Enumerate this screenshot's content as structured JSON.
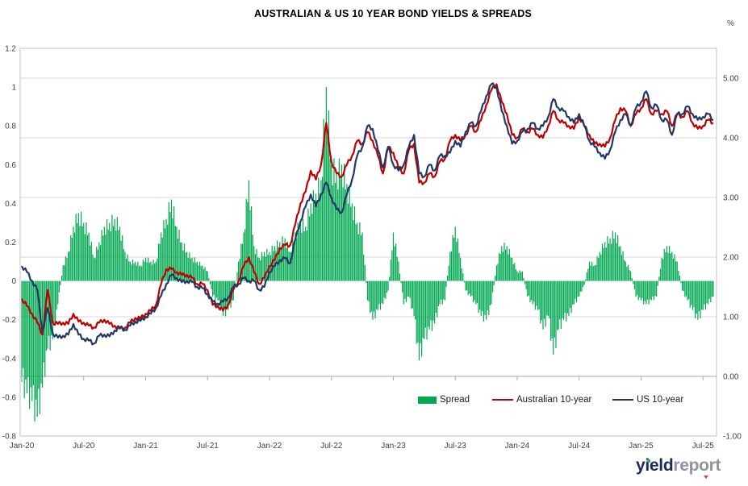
{
  "title": "AUSTRALIAN & US 10 YEAR BOND YIELDS & SPREADS",
  "percent_label": "%",
  "watermark": {
    "yield": "yield",
    "report": "report",
    "yield_color": "#1C2B59",
    "report_color": "#8F959E",
    "dot_color": "#3DAE4A",
    "triangle_color": "#E03A3E"
  },
  "legend": [
    {
      "label": "Spread",
      "color": "#00A850",
      "swatch": "bar"
    },
    {
      "label": "Australian 10-year",
      "color": "#C00000",
      "swatch": "line"
    },
    {
      "label": "US 10-year",
      "color": "#1F3864",
      "swatch": "line"
    }
  ],
  "chart_data": {
    "type": "combo (bar + line)",
    "title": "AUSTRALIAN & US 10 YEAR BOND YIELDS & SPREADS",
    "x_start": "2020-01",
    "x_end": "2025-08",
    "sampling": "semi-monthly (2 samples per month), values in percent",
    "x_tick_labels": [
      "Jan-20",
      "Jul-20",
      "Jan-21",
      "Jul-21",
      "Jan-22",
      "Jul-22",
      "Jan-23",
      "Jul-23",
      "Jan-24",
      "Jul-24",
      "Jan-25",
      "Jul-25"
    ],
    "grid": true,
    "legend_position": "bottom-inside",
    "left_axis": {
      "series_on_axis": "Spread (Australian minus US, percentage points)",
      "min": -0.8,
      "max": 1.2,
      "tick_values": [
        1.2,
        1.0,
        0.8,
        0.6,
        0.4,
        0.2,
        0.0,
        -0.2,
        -0.4,
        -0.6,
        -0.8
      ],
      "tick_labels": [
        "1.2",
        "1",
        "0.8",
        "0.6",
        "0.4",
        "0.2",
        "0",
        "-0.2",
        "-0.4",
        "-0.6",
        "-0.8"
      ]
    },
    "right_axis": {
      "series_on_axis": "Bond yields (%)",
      "unit": "%",
      "min": -1.0,
      "max": 5.5,
      "tick_values": [
        5,
        4,
        3,
        2,
        1,
        0,
        -1
      ],
      "tick_labels": [
        "5.00",
        "4.00",
        "3.00",
        "2.00",
        "1.00",
        "0.00",
        "-1.00"
      ]
    },
    "series": [
      {
        "name": "Spread",
        "type": "bar",
        "axis": "left",
        "color": "#00A850",
        "values": [
          -0.52,
          -0.58,
          -0.62,
          -0.7,
          -0.55,
          -0.35,
          -0.3,
          -0.12,
          0.08,
          0.15,
          0.28,
          0.35,
          0.3,
          0.25,
          0.12,
          0.2,
          0.28,
          0.3,
          0.32,
          0.28,
          0.15,
          0.1,
          0.1,
          0.08,
          0.12,
          0.1,
          0.1,
          0.25,
          0.32,
          0.42,
          0.28,
          0.2,
          0.15,
          0.12,
          0.1,
          0.08,
          0.05,
          -0.08,
          -0.1,
          -0.18,
          -0.15,
          -0.1,
          0.1,
          0.25,
          0.52,
          0.18,
          0.12,
          0.15,
          0.15,
          0.18,
          0.2,
          0.22,
          0.15,
          0.25,
          0.3,
          0.28,
          0.4,
          0.45,
          0.52,
          1.0,
          0.6,
          0.55,
          0.6,
          0.5,
          0.4,
          0.3,
          0.25,
          -0.1,
          -0.2,
          -0.15,
          -0.12,
          -0.05,
          0.25,
          0.1,
          -0.12,
          -0.08,
          -0.18,
          -0.41,
          -0.3,
          -0.25,
          -0.22,
          -0.12,
          -0.1,
          0.15,
          0.28,
          0.12,
          -0.05,
          -0.08,
          -0.12,
          -0.18,
          -0.2,
          -0.12,
          0.08,
          0.18,
          0.18,
          0.12,
          0.05,
          0.05,
          -0.08,
          -0.12,
          -0.15,
          -0.25,
          -0.18,
          -0.38,
          -0.25,
          -0.2,
          -0.18,
          -0.12,
          -0.08,
          -0.02,
          0.1,
          0.08,
          0.15,
          0.2,
          0.22,
          0.25,
          0.18,
          0.1,
          0.05,
          -0.08,
          -0.1,
          -0.12,
          -0.1,
          -0.08,
          0.12,
          0.18,
          0.15,
          0.1,
          -0.05,
          -0.1,
          -0.15,
          -0.2,
          -0.15,
          -0.12,
          -0.08
        ]
      },
      {
        "name": "Australian 10-year",
        "type": "line",
        "axis": "right",
        "color": "#C00000",
        "values": [
          1.3,
          1.18,
          1.05,
          0.9,
          0.7,
          1.45,
          0.9,
          0.88,
          0.9,
          0.88,
          1.05,
          0.92,
          0.9,
          0.85,
          0.82,
          0.9,
          0.95,
          0.88,
          0.85,
          0.8,
          0.82,
          0.9,
          0.98,
          0.97,
          1.05,
          1.1,
          1.2,
          1.55,
          1.8,
          1.8,
          1.75,
          1.7,
          1.7,
          1.65,
          1.55,
          1.55,
          1.45,
          1.2,
          1.18,
          1.1,
          1.2,
          1.45,
          1.6,
          1.85,
          2.0,
          1.75,
          1.55,
          1.65,
          1.85,
          1.95,
          2.15,
          2.2,
          2.2,
          2.55,
          2.9,
          3.1,
          3.45,
          3.3,
          3.55,
          4.25,
          3.6,
          3.4,
          3.35,
          3.55,
          3.7,
          3.95,
          3.9,
          4.1,
          3.95,
          3.7,
          3.4,
          3.85,
          3.75,
          3.5,
          3.4,
          3.8,
          3.9,
          3.25,
          3.25,
          3.4,
          3.35,
          3.6,
          3.65,
          3.95,
          4.05,
          3.95,
          4.05,
          4.2,
          4.1,
          4.3,
          4.55,
          4.8,
          4.9,
          4.6,
          4.4,
          4.05,
          4.0,
          4.15,
          4.1,
          4.15,
          4.05,
          4.0,
          4.2,
          4.45,
          4.3,
          4.25,
          4.2,
          4.15,
          4.35,
          4.2,
          4.05,
          3.9,
          3.9,
          3.85,
          4.0,
          4.3,
          4.5,
          4.45,
          4.2,
          4.4,
          4.5,
          4.65,
          4.4,
          4.45,
          4.4,
          4.45,
          4.2,
          4.4,
          4.35,
          4.45,
          4.25,
          4.15,
          4.2,
          4.3,
          4.25
        ]
      },
      {
        "name": "US 10-year",
        "type": "line",
        "axis": "right",
        "color": "#1F3864",
        "values": [
          1.85,
          1.75,
          1.6,
          1.45,
          0.75,
          1.15,
          0.72,
          0.65,
          0.68,
          0.7,
          0.88,
          0.7,
          0.63,
          0.6,
          0.55,
          0.68,
          0.7,
          0.67,
          0.77,
          0.82,
          0.78,
          0.85,
          0.92,
          0.93,
          1.0,
          1.05,
          1.15,
          1.35,
          1.55,
          1.7,
          1.65,
          1.58,
          1.6,
          1.58,
          1.5,
          1.48,
          1.38,
          1.25,
          1.22,
          1.25,
          1.32,
          1.5,
          1.55,
          1.65,
          1.6,
          1.6,
          1.45,
          1.5,
          1.75,
          1.85,
          1.95,
          1.98,
          1.9,
          2.3,
          2.6,
          2.85,
          3.05,
          2.85,
          3.05,
          3.25,
          3.0,
          2.8,
          2.75,
          3.05,
          3.3,
          3.7,
          3.85,
          4.2,
          4.15,
          3.8,
          3.5,
          3.85,
          3.55,
          3.45,
          3.55,
          3.85,
          4.05,
          3.4,
          3.35,
          3.55,
          3.45,
          3.7,
          3.7,
          3.75,
          3.95,
          3.85,
          4.1,
          4.25,
          4.2,
          4.45,
          4.7,
          4.9,
          4.85,
          4.45,
          4.2,
          3.9,
          3.95,
          4.1,
          4.15,
          4.25,
          4.15,
          4.2,
          4.35,
          4.65,
          4.5,
          4.45,
          4.35,
          4.25,
          4.4,
          4.2,
          3.95,
          3.85,
          3.75,
          3.65,
          3.8,
          4.1,
          4.3,
          4.4,
          4.2,
          4.5,
          4.6,
          4.78,
          4.5,
          4.55,
          4.3,
          4.3,
          4.05,
          4.4,
          4.4,
          4.53,
          4.4,
          4.3,
          4.35,
          4.4,
          4.3
        ]
      }
    ]
  }
}
